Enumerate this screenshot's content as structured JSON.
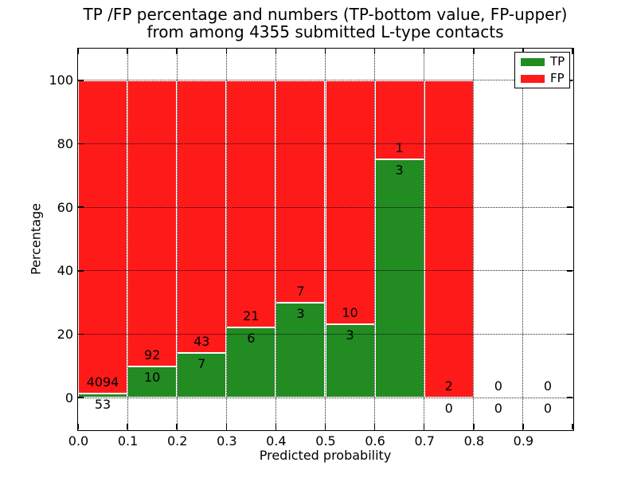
{
  "chart_data": {
    "type": "bar",
    "stacked": true,
    "title_line1": "TP /FP percentage and numbers (TP-bottom value, FP-upper)",
    "title_line2": "from among 4355 submitted L-type contacts",
    "xlabel": "Predicted probability",
    "ylabel": "Percentage",
    "total_submitted": 4355,
    "xlim": [
      0.0,
      1.0
    ],
    "ylim": [
      -10,
      110
    ],
    "grid": "dotted",
    "x_tick_values": [
      0.0,
      0.1,
      0.2,
      0.3,
      0.4,
      0.5,
      0.6,
      0.7,
      0.8,
      0.9
    ],
    "x_tick_labels": [
      "0.0",
      "0.1",
      "0.2",
      "0.3",
      "0.4",
      "0.5",
      "0.6",
      "0.7",
      "0.8",
      "0.9"
    ],
    "y_tick_values": [
      0,
      20,
      40,
      60,
      80,
      100
    ],
    "y_tick_labels": [
      "0",
      "20",
      "40",
      "60",
      "80",
      "100"
    ],
    "colors": {
      "tp": "#228b22",
      "fp": "#ff1a1a"
    },
    "legend": {
      "position": "upper-right",
      "entries": [
        {
          "label": "TP",
          "color_key": "tp"
        },
        {
          "label": "FP",
          "color_key": "fp"
        }
      ]
    },
    "categories": [
      "0.0-0.1",
      "0.1-0.2",
      "0.2-0.3",
      "0.3-0.4",
      "0.4-0.5",
      "0.5-0.6",
      "0.6-0.7",
      "0.7-0.8",
      "0.8-0.9",
      "0.9-1.0"
    ],
    "series": [
      {
        "name": "TP",
        "counts": [
          53,
          10,
          7,
          6,
          3,
          3,
          3,
          0,
          0,
          0
        ]
      },
      {
        "name": "FP",
        "counts": [
          4094,
          92,
          43,
          21,
          7,
          10,
          1,
          2,
          0,
          0
        ]
      }
    ],
    "bins": [
      {
        "x_start": 0.0,
        "x_end": 0.1,
        "tp": 53,
        "fp": 4094,
        "tp_pct": 1.28,
        "has_bar": true
      },
      {
        "x_start": 0.1,
        "x_end": 0.2,
        "tp": 10,
        "fp": 92,
        "tp_pct": 9.8,
        "has_bar": true
      },
      {
        "x_start": 0.2,
        "x_end": 0.3,
        "tp": 7,
        "fp": 43,
        "tp_pct": 14.0,
        "has_bar": true
      },
      {
        "x_start": 0.3,
        "x_end": 0.4,
        "tp": 6,
        "fp": 21,
        "tp_pct": 22.22,
        "has_bar": true
      },
      {
        "x_start": 0.4,
        "x_end": 0.5,
        "tp": 3,
        "fp": 7,
        "tp_pct": 30.0,
        "has_bar": true
      },
      {
        "x_start": 0.5,
        "x_end": 0.6,
        "tp": 3,
        "fp": 10,
        "tp_pct": 23.08,
        "has_bar": true
      },
      {
        "x_start": 0.6,
        "x_end": 0.7,
        "tp": 3,
        "fp": 1,
        "tp_pct": 75.0,
        "has_bar": true
      },
      {
        "x_start": 0.7,
        "x_end": 0.8,
        "tp": 0,
        "fp": 2,
        "tp_pct": 0.0,
        "has_bar": true
      },
      {
        "x_start": 0.8,
        "x_end": 0.9,
        "tp": 0,
        "fp": 0,
        "tp_pct": 0.0,
        "has_bar": false
      },
      {
        "x_start": 0.9,
        "x_end": 1.0,
        "tp": 0,
        "fp": 0,
        "tp_pct": 0.0,
        "has_bar": false
      }
    ]
  }
}
